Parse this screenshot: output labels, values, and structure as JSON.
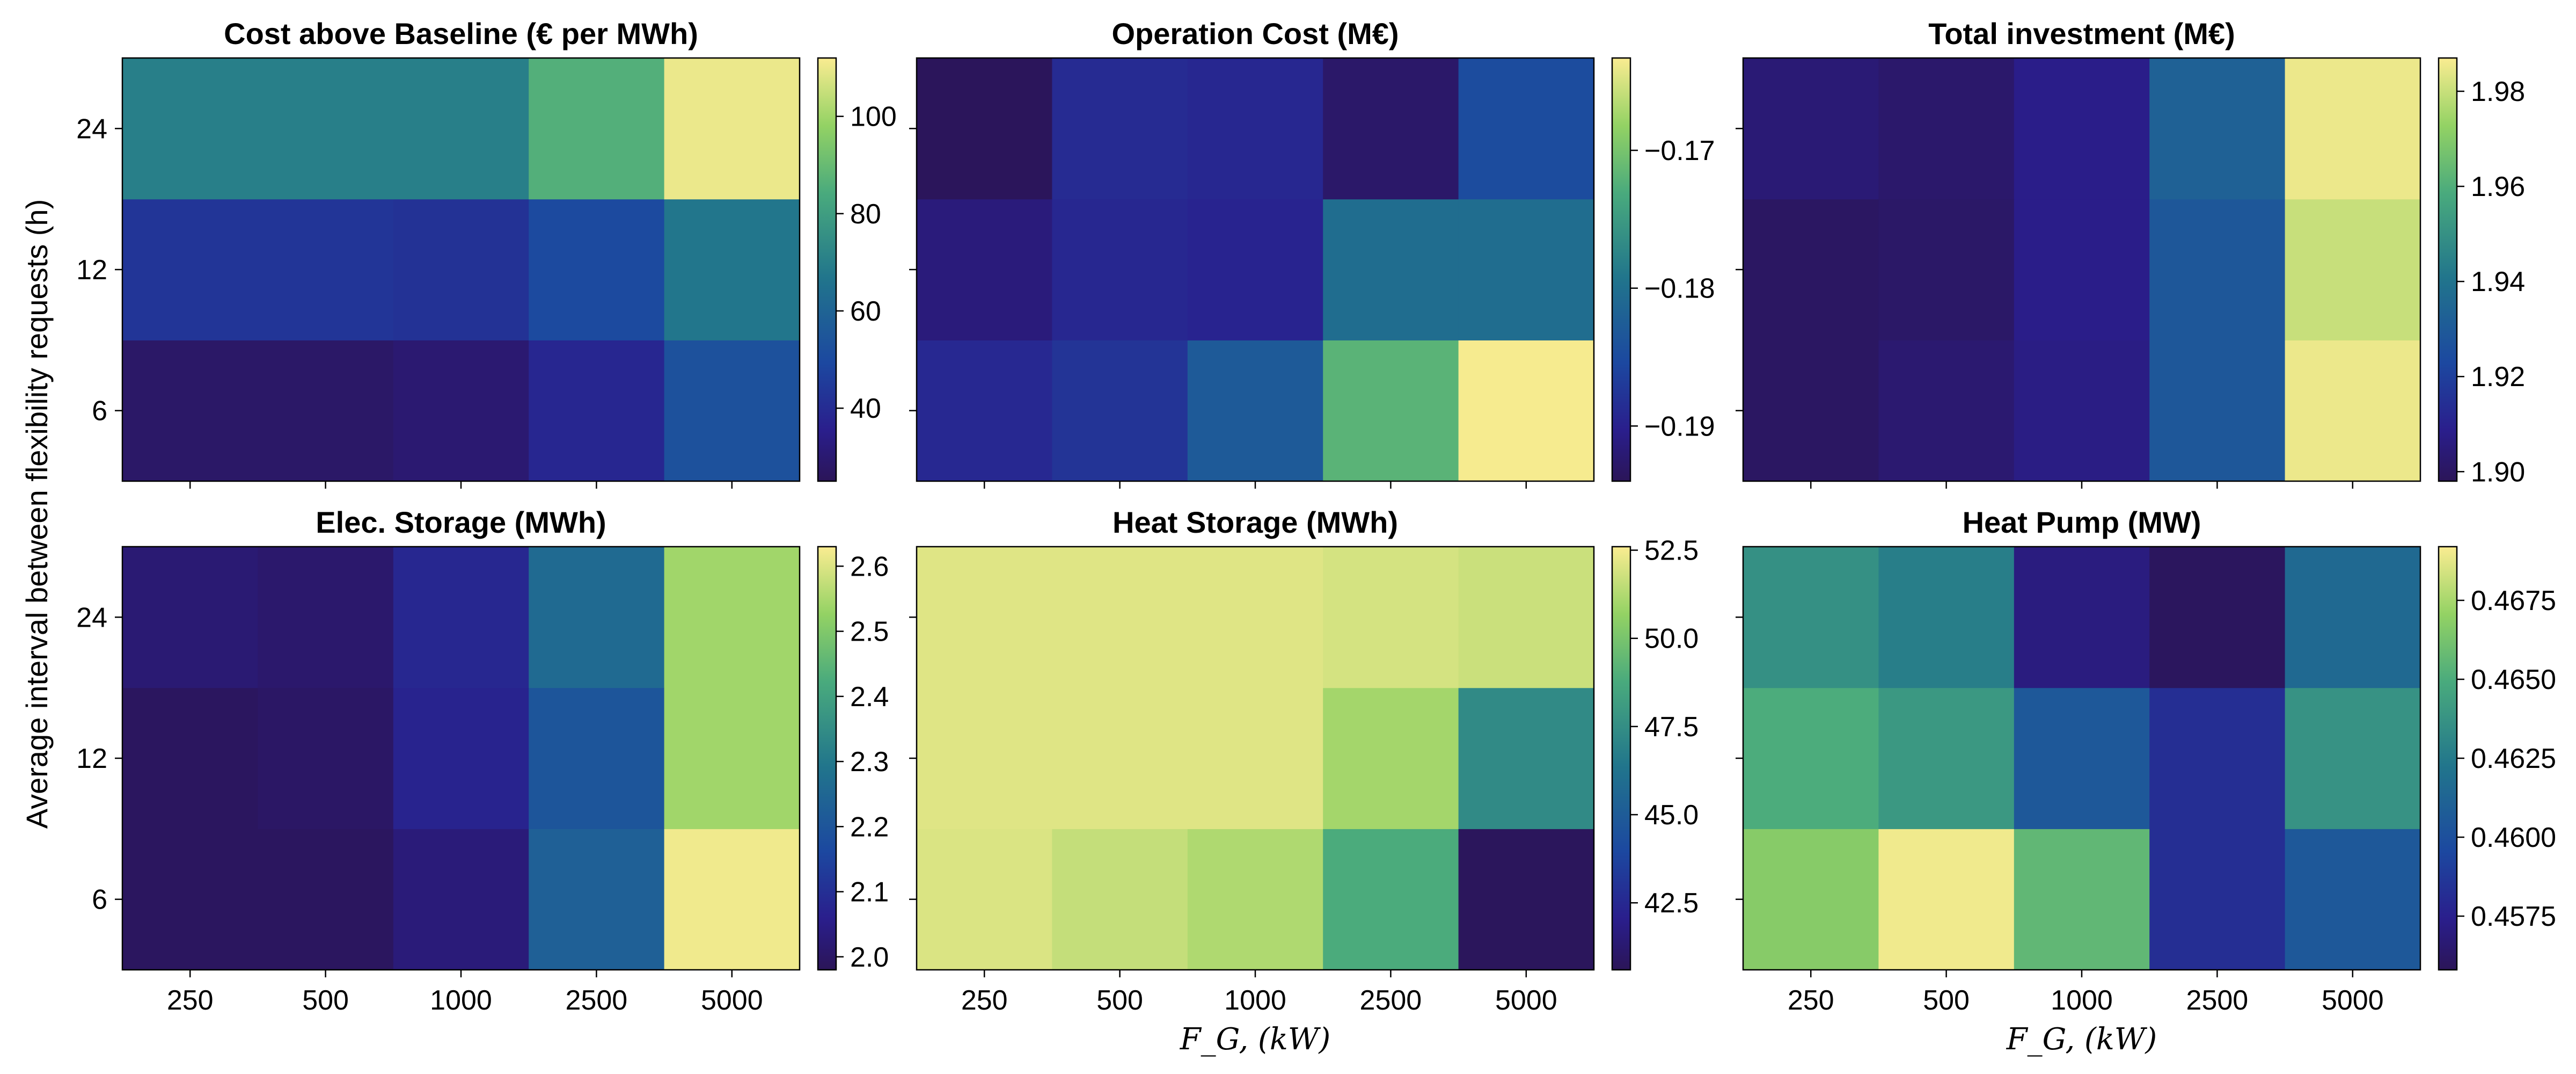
{
  "chart_data": [
    {
      "type": "heatmap",
      "title": "Cost above Baseline (€ per MWh)",
      "x": [
        "250",
        "500",
        "1000",
        "2500",
        "5000"
      ],
      "y": [
        "6",
        "12",
        "24"
      ],
      "xlabel": "",
      "ylabel": "Average interval between flexibility requests (h)",
      "values": [
        [
          28,
          28,
          30,
          38,
          53
        ],
        [
          43,
          43,
          42,
          50,
          67
        ],
        [
          70,
          70,
          70,
          86,
          110
        ]
      ],
      "colorbar": {
        "range": [
          25,
          112
        ],
        "ticks": [
          40,
          60,
          80,
          100
        ],
        "tick_labels": [
          "40",
          "60",
          "80",
          "100"
        ]
      }
    },
    {
      "type": "heatmap",
      "title": "Operation Cost (M€)",
      "x": [
        "250",
        "500",
        "1000",
        "2500",
        "5000"
      ],
      "y": [
        "6",
        "12",
        "24"
      ],
      "xlabel": "",
      "ylabel": "",
      "values": [
        [
          -0.1892,
          -0.1878,
          -0.183,
          -0.172,
          -0.1635
        ],
        [
          -0.1915,
          -0.1893,
          -0.1897,
          -0.1803,
          -0.1803
        ],
        [
          -0.1938,
          -0.1888,
          -0.1893,
          -0.1928,
          -0.1848
        ]
      ],
      "colorbar": {
        "range": [
          -0.194,
          -0.1633
        ],
        "ticks": [
          -0.19,
          -0.18,
          -0.17
        ],
        "tick_labels": [
          "−0.19",
          "−0.18",
          "−0.17"
        ]
      }
    },
    {
      "type": "heatmap",
      "title": "Total investment (M€)",
      "x": [
        "250",
        "500",
        "1000",
        "2500",
        "5000"
      ],
      "y": [
        "6",
        "12",
        "24"
      ],
      "xlabel": "F_G, (kW)",
      "ylabel": "",
      "values": [
        [
          1.9,
          1.903,
          1.907,
          1.929,
          1.985
        ],
        [
          1.9,
          1.901,
          1.908,
          1.929,
          1.98
        ],
        [
          1.904,
          1.902,
          1.908,
          1.933,
          1.985
        ]
      ],
      "colorbar": {
        "range": [
          1.898,
          1.987
        ],
        "ticks": [
          1.9,
          1.92,
          1.94,
          1.96,
          1.98
        ],
        "tick_labels": [
          "1.90",
          "1.92",
          "1.94",
          "1.96",
          "1.98"
        ]
      }
    },
    {
      "type": "heatmap",
      "title": "Elec. Storage (MWh)",
      "x": [
        "250",
        "500",
        "1000",
        "2500",
        "5000"
      ],
      "y": [
        "6",
        "12",
        "24"
      ],
      "xlabel": "",
      "ylabel": "",
      "values": [
        [
          1.99,
          1.99,
          2.03,
          2.23,
          2.62
        ],
        [
          1.99,
          2.0,
          2.07,
          2.2,
          2.54
        ],
        [
          2.02,
          2.01,
          2.08,
          2.26,
          2.54
        ]
      ],
      "colorbar": {
        "range": [
          1.98,
          2.63
        ],
        "ticks": [
          2.0,
          2.1,
          2.2,
          2.3,
          2.4,
          2.5,
          2.6
        ],
        "tick_labels": [
          "2.0",
          "2.1",
          "2.2",
          "2.3",
          "2.4",
          "2.5",
          "2.6"
        ]
      }
    },
    {
      "type": "heatmap",
      "title": "Heat Storage (MWh)",
      "x": [
        "250",
        "500",
        "1000",
        "2500",
        "5000"
      ],
      "y": [
        "6",
        "12",
        "24"
      ],
      "xlabel": "F_G, (kW)",
      "ylabel": "",
      "values": [
        [
          52.0,
          51.6,
          51.2,
          48.8,
          40.7
        ],
        [
          52.1,
          52.1,
          52.1,
          51.0,
          47.3
        ],
        [
          52.1,
          52.1,
          52.1,
          51.9,
          51.7
        ]
      ],
      "colorbar": {
        "range": [
          40.6,
          52.6
        ],
        "ticks": [
          42.5,
          45.0,
          47.5,
          50.0,
          52.5
        ],
        "tick_labels": [
          "42.5",
          "45.0",
          "47.5",
          "50.0",
          "52.5"
        ]
      }
    },
    {
      "type": "heatmap",
      "title": "Heat Pump (MW)",
      "x": [
        "250",
        "500",
        "1000",
        "2500",
        "5000"
      ],
      "y": [
        "6",
        "12",
        "24"
      ],
      "xlabel": "F_G, (kW)",
      "ylabel": "",
      "values": [
        [
          0.4667,
          0.469,
          0.4656,
          0.4582,
          0.4605
        ],
        [
          0.465,
          0.464,
          0.4605,
          0.4582,
          0.4637
        ],
        [
          0.4636,
          0.4627,
          0.457,
          0.456,
          0.4615
        ]
      ],
      "colorbar": {
        "range": [
          0.4558,
          0.4692
        ],
        "ticks": [
          0.4575,
          0.46,
          0.4625,
          0.465,
          0.4675
        ],
        "tick_labels": [
          "0.4575",
          "0.4600",
          "0.4625",
          "0.4650",
          "0.4675"
        ]
      }
    }
  ]
}
